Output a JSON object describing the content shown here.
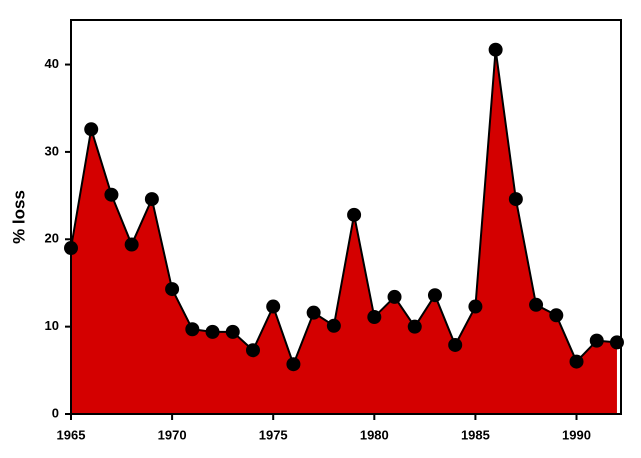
{
  "chart_data": {
    "type": "area",
    "y_label": "% loss",
    "x": [
      1965,
      1966,
      1967,
      1968,
      1969,
      1970,
      1971,
      1972,
      1973,
      1974,
      1975,
      1976,
      1977,
      1978,
      1979,
      1980,
      1981,
      1982,
      1983,
      1984,
      1985,
      1986,
      1987,
      1988,
      1989,
      1990,
      1991,
      1992
    ],
    "values": [
      19.0,
      32.6,
      25.1,
      19.4,
      24.6,
      14.3,
      9.7,
      9.4,
      9.4,
      7.3,
      12.3,
      5.7,
      11.6,
      10.1,
      22.8,
      11.1,
      13.4,
      10.0,
      13.6,
      7.9,
      12.3,
      41.7,
      24.6,
      12.5,
      11.3,
      6.0,
      8.4,
      8.2
    ],
    "color": "#d40000",
    "marker_color": "#000000",
    "xlim": [
      1965,
      1992.2
    ],
    "xticks": [
      1965,
      1970,
      1975,
      1980,
      1985,
      1990
    ],
    "ylim": [
      0,
      45.1
    ],
    "yticks": [
      0,
      10,
      20,
      30,
      40
    ]
  }
}
